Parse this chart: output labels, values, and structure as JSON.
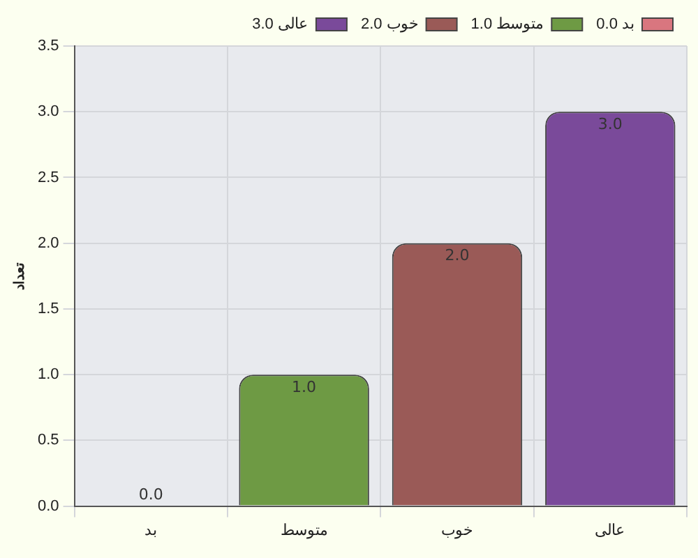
{
  "chart_data": {
    "type": "bar",
    "ylabel": "تعداد",
    "categories": [
      "بد",
      "متوسط",
      "خوب",
      "عالی"
    ],
    "series": [
      {
        "name": "بد 0.0",
        "color": "#d9767f",
        "values": [
          0,
          null,
          null,
          null
        ],
        "value_labels": [
          "0.0",
          null,
          null,
          null
        ]
      },
      {
        "name": "متوسط 1.0",
        "color": "#6e9a44",
        "values": [
          null,
          1,
          null,
          null
        ],
        "value_labels": [
          null,
          "1.0",
          null,
          null
        ]
      },
      {
        "name": "خوب 2.0",
        "color": "#9a5a57",
        "values": [
          null,
          null,
          2,
          null
        ],
        "value_labels": [
          null,
          null,
          "2.0",
          null
        ]
      },
      {
        "name": "عالی 3.0",
        "color": "#7a4a9a",
        "values": [
          null,
          null,
          null,
          3
        ],
        "value_labels": [
          null,
          null,
          null,
          "3.0"
        ]
      }
    ],
    "ylim": [
      0,
      3.5
    ],
    "yticks": [
      {
        "value": 0,
        "label": "0.0"
      },
      {
        "value": 0.5,
        "label": "0.5"
      },
      {
        "value": 1,
        "label": "1.0"
      },
      {
        "value": 1.5,
        "label": "1.5"
      },
      {
        "value": 2,
        "label": "2.0"
      },
      {
        "value": 2.5,
        "label": "2.5"
      },
      {
        "value": 3,
        "label": "3.0"
      },
      {
        "value": 3.5,
        "label": "3.5"
      }
    ],
    "grid": true,
    "legend": "top right"
  }
}
